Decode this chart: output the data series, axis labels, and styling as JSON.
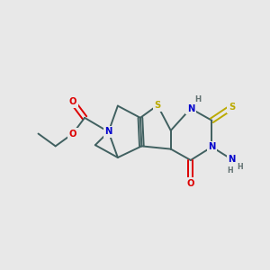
{
  "bg_color": "#e8e8e8",
  "bond_color": "#406060",
  "atom_colors": {
    "N": "#0000cc",
    "O": "#dd0000",
    "S_ring": "#bbaa00",
    "S_thioxo": "#bbaa00",
    "H": "#607070",
    "NH2_N": "#0000cc",
    "NH2_H": "#607070"
  },
  "lw": 1.4,
  "fs": 7.2
}
